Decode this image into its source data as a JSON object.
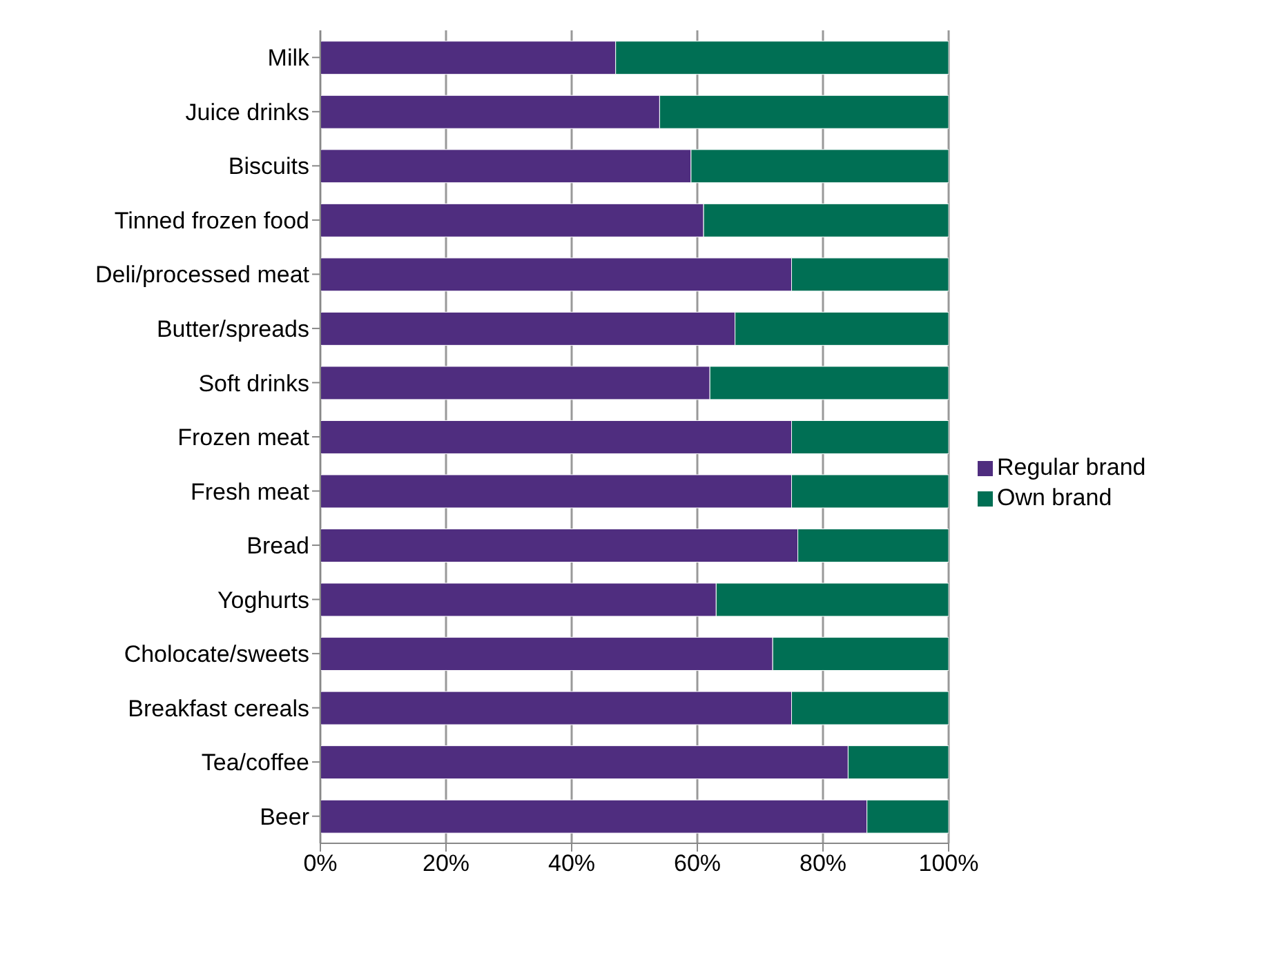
{
  "chart_data": {
    "type": "bar",
    "orientation": "horizontal",
    "stacked": true,
    "categories": [
      "Milk",
      "Juice drinks",
      "Biscuits",
      "Tinned frozen food",
      "Deli/processed meat",
      "Butter/spreads",
      "Soft drinks",
      "Frozen meat",
      "Fresh meat",
      "Bread",
      "Yoghurts",
      "Cholocate/sweets",
      "Breakfast cereals",
      "Tea/coffee",
      "Beer"
    ],
    "series": [
      {
        "name": "Regular brand",
        "color": "#4f2d7f",
        "values": [
          47,
          54,
          59,
          61,
          75,
          66,
          62,
          75,
          75,
          76,
          63,
          72,
          75,
          84,
          87
        ]
      },
      {
        "name": "Own brand",
        "color": "#006f54",
        "values": [
          53,
          46,
          41,
          39,
          25,
          34,
          38,
          25,
          25,
          24,
          37,
          28,
          25,
          16,
          13
        ]
      }
    ],
    "xlim": [
      0,
      100
    ],
    "xticks": [
      {
        "value": 0,
        "label": "0%"
      },
      {
        "value": 20,
        "label": "20%"
      },
      {
        "value": 40,
        "label": "40%"
      },
      {
        "value": 60,
        "label": "60%"
      },
      {
        "value": 80,
        "label": "80%"
      },
      {
        "value": 100,
        "label": "100%"
      }
    ],
    "grid": "x",
    "legend": "right"
  }
}
